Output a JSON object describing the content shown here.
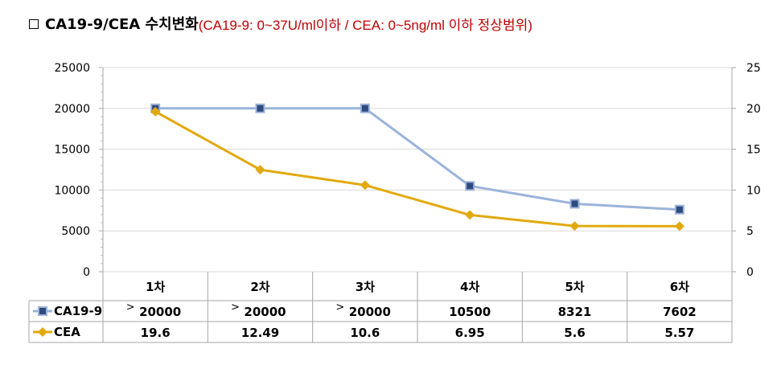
{
  "title": {
    "main": "CA19-9/CEA 수치변화",
    "sub": "(CA19-9: 0~37U/ml이하 / CEA: 0~5ng/ml 이하 정상범위)"
  },
  "chart_data": {
    "type": "line",
    "categories": [
      "1차",
      "2차",
      "3차",
      "4차",
      "5차",
      "6차"
    ],
    "y_left": {
      "ticks": [
        "25000",
        "20000",
        "15000",
        "10000",
        "5000",
        "0"
      ],
      "ylim": [
        0,
        25000
      ]
    },
    "y_right": {
      "ticks": [
        "25",
        "20",
        "15",
        "10",
        "5",
        "0"
      ],
      "ylim": [
        0,
        25
      ]
    },
    "grid": true,
    "legend": "data-table",
    "series": [
      {
        "name": "CA19-9",
        "axis": "left",
        "color": "#9bb3db",
        "marker_color": "#2f4a7c",
        "values": [
          20000,
          20000,
          20000,
          10500,
          8321,
          7602
        ],
        "labels": [
          "20000",
          "20000",
          "20000",
          "10500",
          "8321",
          "7602"
        ],
        "prefix": [
          ">",
          ">",
          ">",
          "",
          "",
          ""
        ]
      },
      {
        "name": "CEA",
        "axis": "right",
        "color": "#e2a90c",
        "marker_color": "#e2a90c",
        "values": [
          19.6,
          12.49,
          10.6,
          6.95,
          5.6,
          5.57
        ],
        "labels": [
          "19.6",
          "12.49",
          "10.6",
          "6.95",
          "5.6",
          "5.57"
        ],
        "prefix": [
          "",
          "",
          "",
          "",
          "",
          ""
        ]
      }
    ]
  }
}
